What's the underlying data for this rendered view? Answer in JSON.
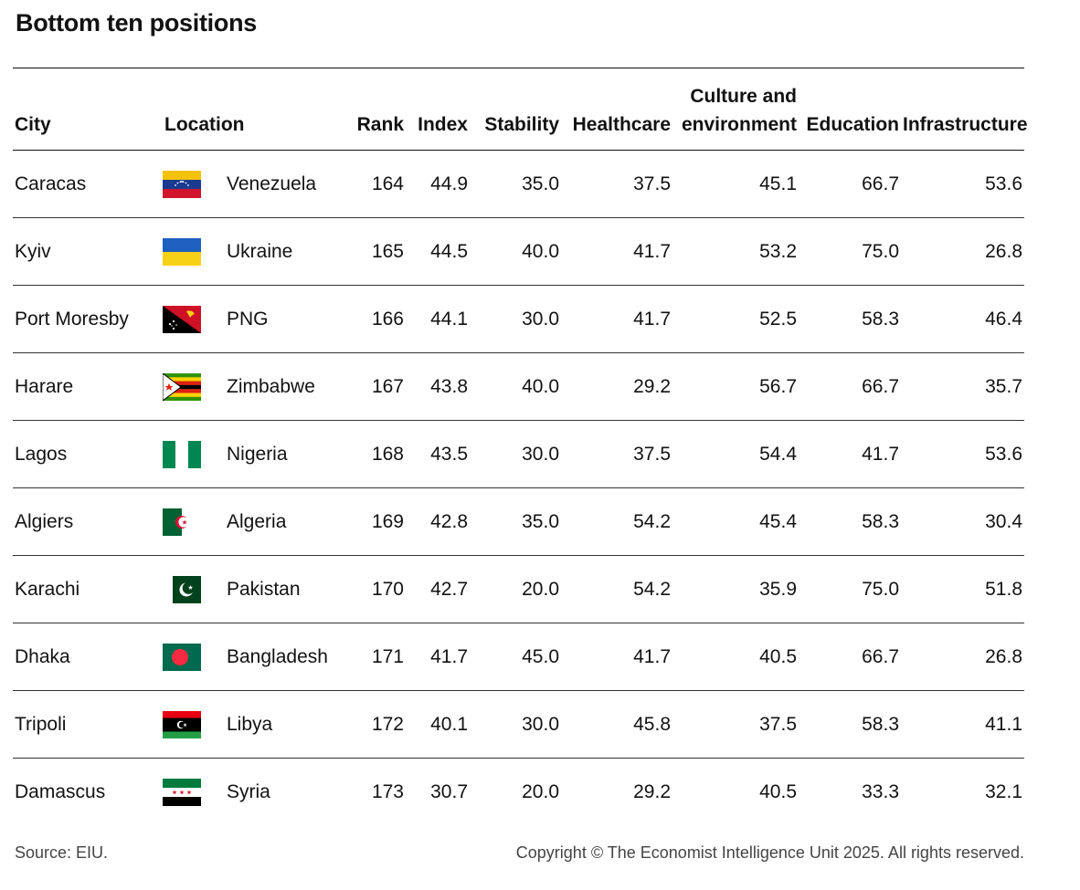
{
  "title": "Bottom ten positions",
  "footer": {
    "source": "Source: EIU.",
    "copyright": "Copyright © The Economist Intelligence Unit 2025. All rights reserved."
  },
  "chart_data": {
    "type": "table",
    "title": "Bottom ten positions",
    "columns": [
      "City",
      "Location",
      "Rank",
      "Index",
      "Stability",
      "Healthcare",
      "Culture and environment",
      "Education",
      "Infrastructure"
    ],
    "column_lines": {
      "culture_line1": "Culture and",
      "culture_line2": "environment"
    },
    "rows": [
      {
        "city": "Caracas",
        "location": "Venezuela",
        "flag": "flag-venezuela-icon",
        "rank": "164",
        "index": "44.9",
        "stability": "35.0",
        "healthcare": "37.5",
        "culture": "45.1",
        "education": "66.7",
        "infrastructure": "53.6"
      },
      {
        "city": "Kyiv",
        "location": "Ukraine",
        "flag": "flag-ukraine-icon",
        "rank": "165",
        "index": "44.5",
        "stability": "40.0",
        "healthcare": "41.7",
        "culture": "53.2",
        "education": "75.0",
        "infrastructure": "26.8"
      },
      {
        "city": "Port Moresby",
        "location": "PNG",
        "flag": "flag-png-icon",
        "rank": "166",
        "index": "44.1",
        "stability": "30.0",
        "healthcare": "41.7",
        "culture": "52.5",
        "education": "58.3",
        "infrastructure": "46.4"
      },
      {
        "city": "Harare",
        "location": "Zimbabwe",
        "flag": "flag-zimbabwe-icon",
        "rank": "167",
        "index": "43.8",
        "stability": "40.0",
        "healthcare": "29.2",
        "culture": "56.7",
        "education": "66.7",
        "infrastructure": "35.7"
      },
      {
        "city": "Lagos",
        "location": "Nigeria",
        "flag": "flag-nigeria-icon",
        "rank": "168",
        "index": "43.5",
        "stability": "30.0",
        "healthcare": "37.5",
        "culture": "54.4",
        "education": "41.7",
        "infrastructure": "53.6"
      },
      {
        "city": "Algiers",
        "location": "Algeria",
        "flag": "flag-algeria-icon",
        "rank": "169",
        "index": "42.8",
        "stability": "35.0",
        "healthcare": "54.2",
        "culture": "45.4",
        "education": "58.3",
        "infrastructure": "30.4"
      },
      {
        "city": "Karachi",
        "location": "Pakistan",
        "flag": "flag-pakistan-icon",
        "rank": "170",
        "index": "42.7",
        "stability": "20.0",
        "healthcare": "54.2",
        "culture": "35.9",
        "education": "75.0",
        "infrastructure": "51.8"
      },
      {
        "city": "Dhaka",
        "location": "Bangladesh",
        "flag": "flag-bangladesh-icon",
        "rank": "171",
        "index": "41.7",
        "stability": "45.0",
        "healthcare": "41.7",
        "culture": "40.5",
        "education": "66.7",
        "infrastructure": "26.8"
      },
      {
        "city": "Tripoli",
        "location": "Libya",
        "flag": "flag-libya-icon",
        "rank": "172",
        "index": "40.1",
        "stability": "30.0",
        "healthcare": "45.8",
        "culture": "37.5",
        "education": "58.3",
        "infrastructure": "41.1"
      },
      {
        "city": "Damascus",
        "location": "Syria",
        "flag": "flag-syria-icon",
        "rank": "173",
        "index": "30.7",
        "stability": "20.0",
        "healthcare": "29.2",
        "culture": "40.5",
        "education": "33.3",
        "infrastructure": "32.1"
      }
    ]
  }
}
